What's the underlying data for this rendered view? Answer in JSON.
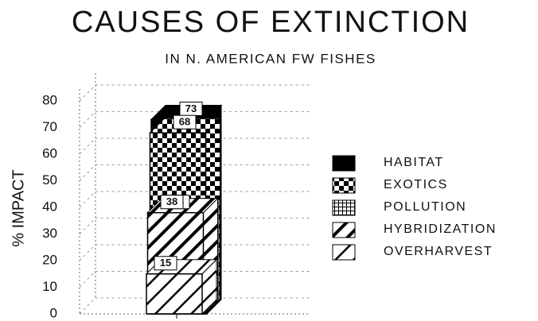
{
  "chart_data": {
    "type": "bar",
    "title": "CAUSES OF EXTINCTION",
    "subtitle": "IN N. AMERICAN FW FISHES",
    "y_label": "% IMPACT",
    "categories": [
      null
    ],
    "series": [
      {
        "name": "HABITAT",
        "color": "#000000",
        "pattern": "solid",
        "values": [
          73
        ]
      },
      {
        "name": "EXOTICS",
        "color": "#000000",
        "pattern": "checker",
        "values": [
          68
        ]
      },
      {
        "name": "POLLUTION",
        "color": "#000000",
        "pattern": "grid",
        "values": [
          38
        ]
      },
      {
        "name": "HYBRIDIZATION",
        "color": "#000000",
        "pattern": "hatch-thick",
        "values": [
          38
        ]
      },
      {
        "name": "OVERHARVEST",
        "color": "#000000",
        "pattern": "hatch-thin",
        "values": [
          15
        ]
      }
    ],
    "ylim": [
      0,
      80
    ],
    "yticks": [
      0,
      10,
      20,
      30,
      40,
      50,
      60,
      70,
      80
    ],
    "grid": true,
    "legend": "right"
  }
}
